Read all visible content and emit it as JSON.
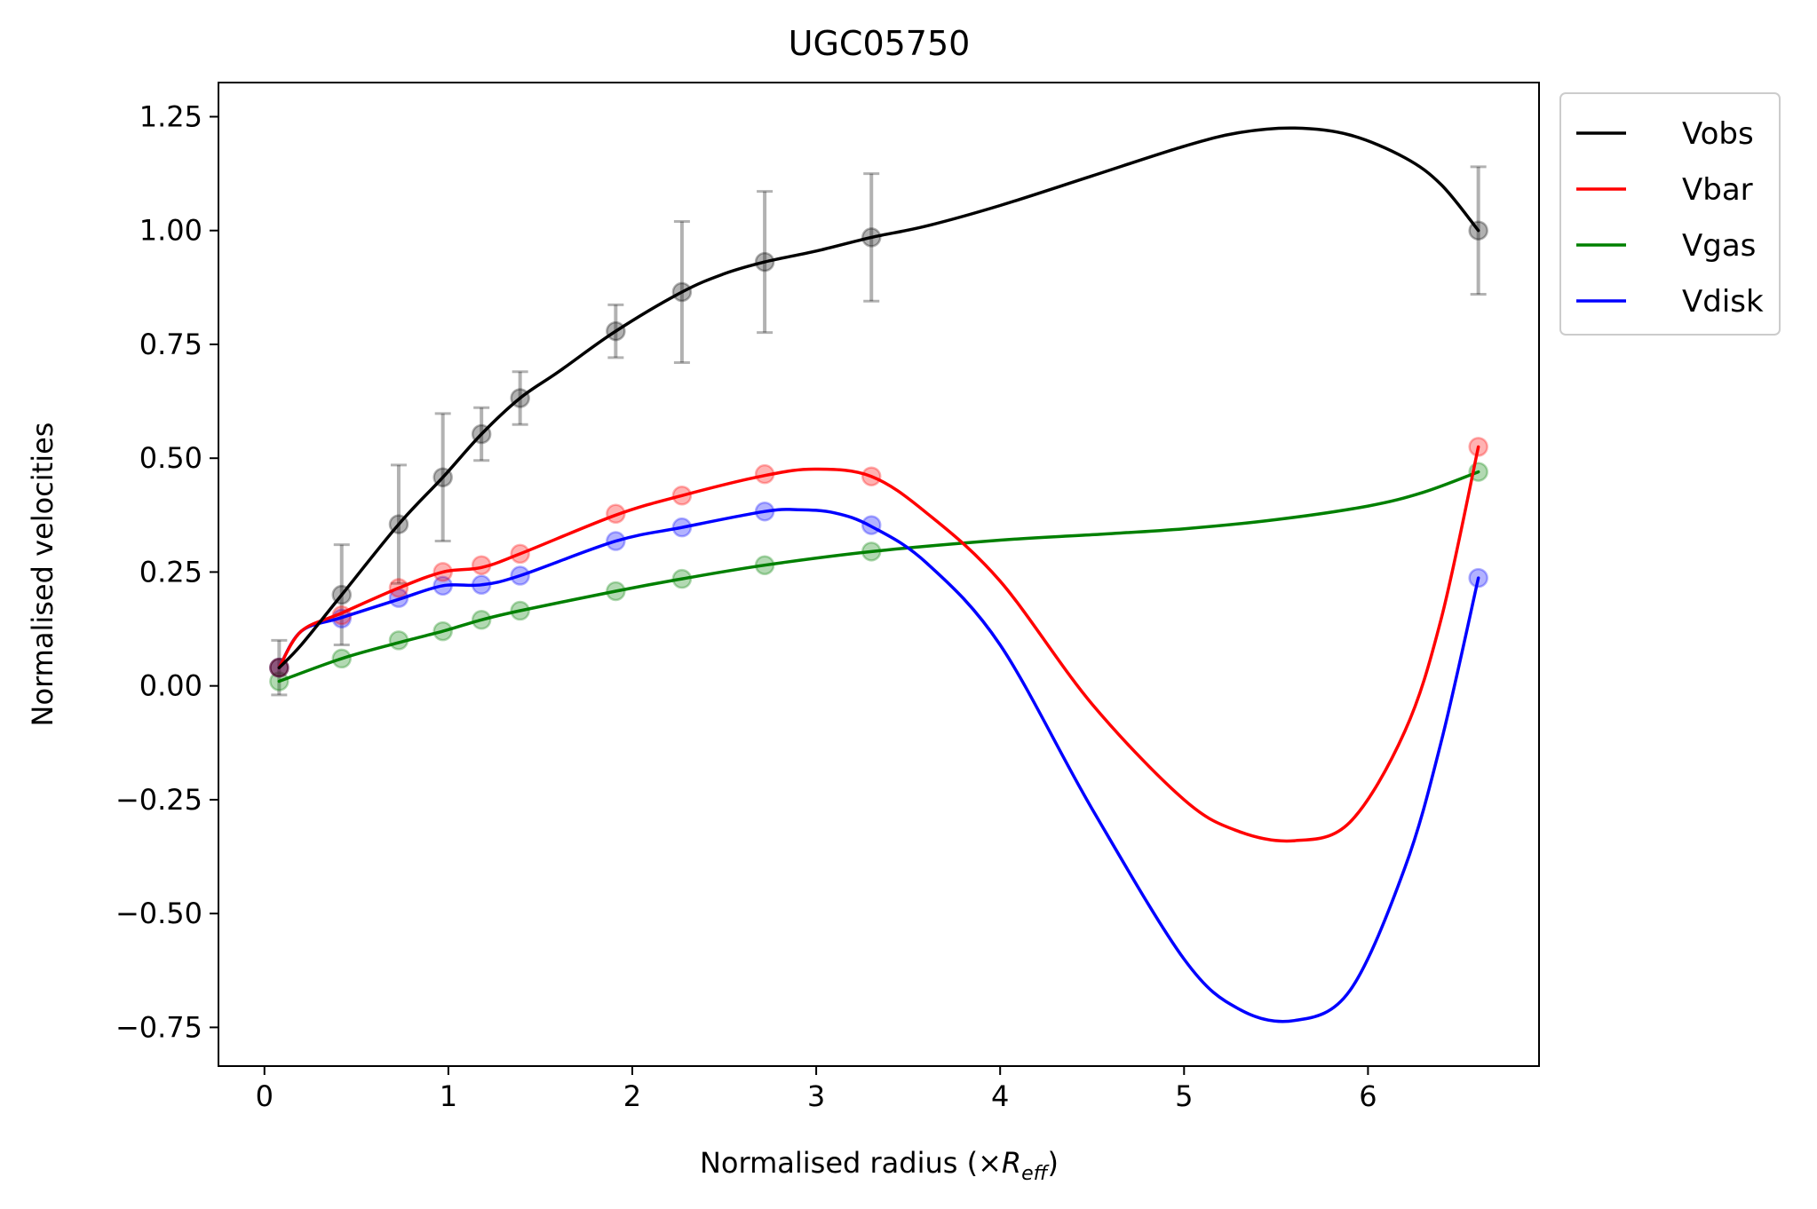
{
  "chart_data": {
    "type": "line",
    "title": "UGC05750",
    "xlabel": "Normalised radius (×",
    "xlabel_symbol": "R",
    "xlabel_subscript": "eff",
    "xlabel_close": ")",
    "ylabel": "Normalised velocities",
    "xlim": [
      -0.25,
      6.93
    ],
    "ylim": [
      -0.835,
      1.325
    ],
    "xticks": [
      0,
      1,
      2,
      3,
      4,
      5,
      6
    ],
    "xtick_labels": [
      "0",
      "1",
      "2",
      "3",
      "4",
      "5",
      "6"
    ],
    "yticks": [
      -0.75,
      -0.5,
      -0.25,
      0.0,
      0.25,
      0.5,
      0.75,
      1.0,
      1.25
    ],
    "ytick_labels": [
      "−0.75",
      "−0.50",
      "−0.25",
      "0.00",
      "0.25",
      "0.50",
      "0.75",
      "1.00",
      "1.25"
    ],
    "grid": false,
    "legend_position": "outside-top-right",
    "points_x": [
      0.08,
      0.42,
      0.73,
      0.97,
      1.18,
      1.39,
      1.91,
      2.27,
      2.72,
      3.3,
      6.6
    ],
    "series": [
      {
        "name": "Vobs",
        "color": "#000000",
        "points_y": [
          0.04,
          0.2,
          0.355,
          0.458,
          0.553,
          0.632,
          0.779,
          0.865,
          0.931,
          0.985,
          1.0
        ],
        "errors": [
          0.06,
          0.11,
          0.13,
          0.14,
          0.058,
          0.058,
          0.058,
          0.155,
          0.155,
          0.14,
          0.14
        ],
        "curve_x": [
          0.08,
          0.2,
          0.42,
          0.73,
          0.97,
          1.18,
          1.39,
          1.6,
          1.91,
          2.27,
          2.5,
          2.72,
          3.0,
          3.3,
          3.6,
          4.0,
          4.5,
          5.0,
          5.3,
          5.6,
          5.9,
          6.2,
          6.4,
          6.6
        ],
        "curve_y": [
          0.04,
          0.09,
          0.2,
          0.355,
          0.458,
          0.553,
          0.632,
          0.69,
          0.779,
          0.865,
          0.905,
          0.931,
          0.955,
          0.985,
          1.01,
          1.055,
          1.12,
          1.185,
          1.215,
          1.225,
          1.21,
          1.16,
          1.1,
          1.0
        ]
      },
      {
        "name": "Vbar",
        "color": "#ff0000",
        "points_y": [
          0.04,
          0.155,
          0.215,
          0.25,
          0.265,
          0.29,
          0.378,
          0.418,
          0.465,
          0.46,
          0.525
        ],
        "curve_x": [
          0.08,
          0.2,
          0.42,
          0.73,
          0.97,
          1.18,
          1.39,
          1.91,
          2.27,
          2.72,
          3.0,
          3.3,
          3.6,
          4.0,
          4.5,
          5.0,
          5.3,
          5.6,
          5.9,
          6.2,
          6.4,
          6.6
        ],
        "curve_y": [
          0.04,
          0.12,
          0.16,
          0.215,
          0.25,
          0.26,
          0.29,
          0.375,
          0.418,
          0.462,
          0.476,
          0.46,
          0.38,
          0.23,
          -0.04,
          -0.25,
          -0.32,
          -0.34,
          -0.3,
          -0.1,
          0.15,
          0.525
        ]
      },
      {
        "name": "Vgas",
        "color": "#008000",
        "points_y": [
          0.01,
          0.06,
          0.1,
          0.12,
          0.145,
          0.165,
          0.208,
          0.235,
          0.265,
          0.295,
          0.47
        ],
        "curve_x": [
          0.08,
          0.42,
          0.73,
          0.97,
          1.18,
          1.39,
          1.91,
          2.27,
          2.72,
          3.3,
          4.0,
          4.5,
          5.0,
          5.5,
          6.0,
          6.3,
          6.6
        ],
        "curve_y": [
          0.01,
          0.06,
          0.095,
          0.12,
          0.145,
          0.165,
          0.208,
          0.235,
          0.265,
          0.295,
          0.32,
          0.332,
          0.345,
          0.365,
          0.395,
          0.425,
          0.47
        ]
      },
      {
        "name": "Vdisk",
        "color": "#0000ff",
        "points_y": [
          0.04,
          0.148,
          0.193,
          0.22,
          0.222,
          0.242,
          0.318,
          0.348,
          0.383,
          0.353,
          0.237
        ],
        "curve_x": [
          0.08,
          0.2,
          0.42,
          0.73,
          0.97,
          1.18,
          1.39,
          1.91,
          2.27,
          2.72,
          2.9,
          3.1,
          3.3,
          3.6,
          4.0,
          4.5,
          5.0,
          5.3,
          5.6,
          5.9,
          6.2,
          6.4,
          6.6
        ],
        "curve_y": [
          0.04,
          0.12,
          0.15,
          0.19,
          0.22,
          0.222,
          0.242,
          0.318,
          0.348,
          0.383,
          0.387,
          0.38,
          0.35,
          0.27,
          0.09,
          -0.27,
          -0.6,
          -0.71,
          -0.735,
          -0.67,
          -0.4,
          -0.12,
          0.237
        ]
      }
    ]
  }
}
